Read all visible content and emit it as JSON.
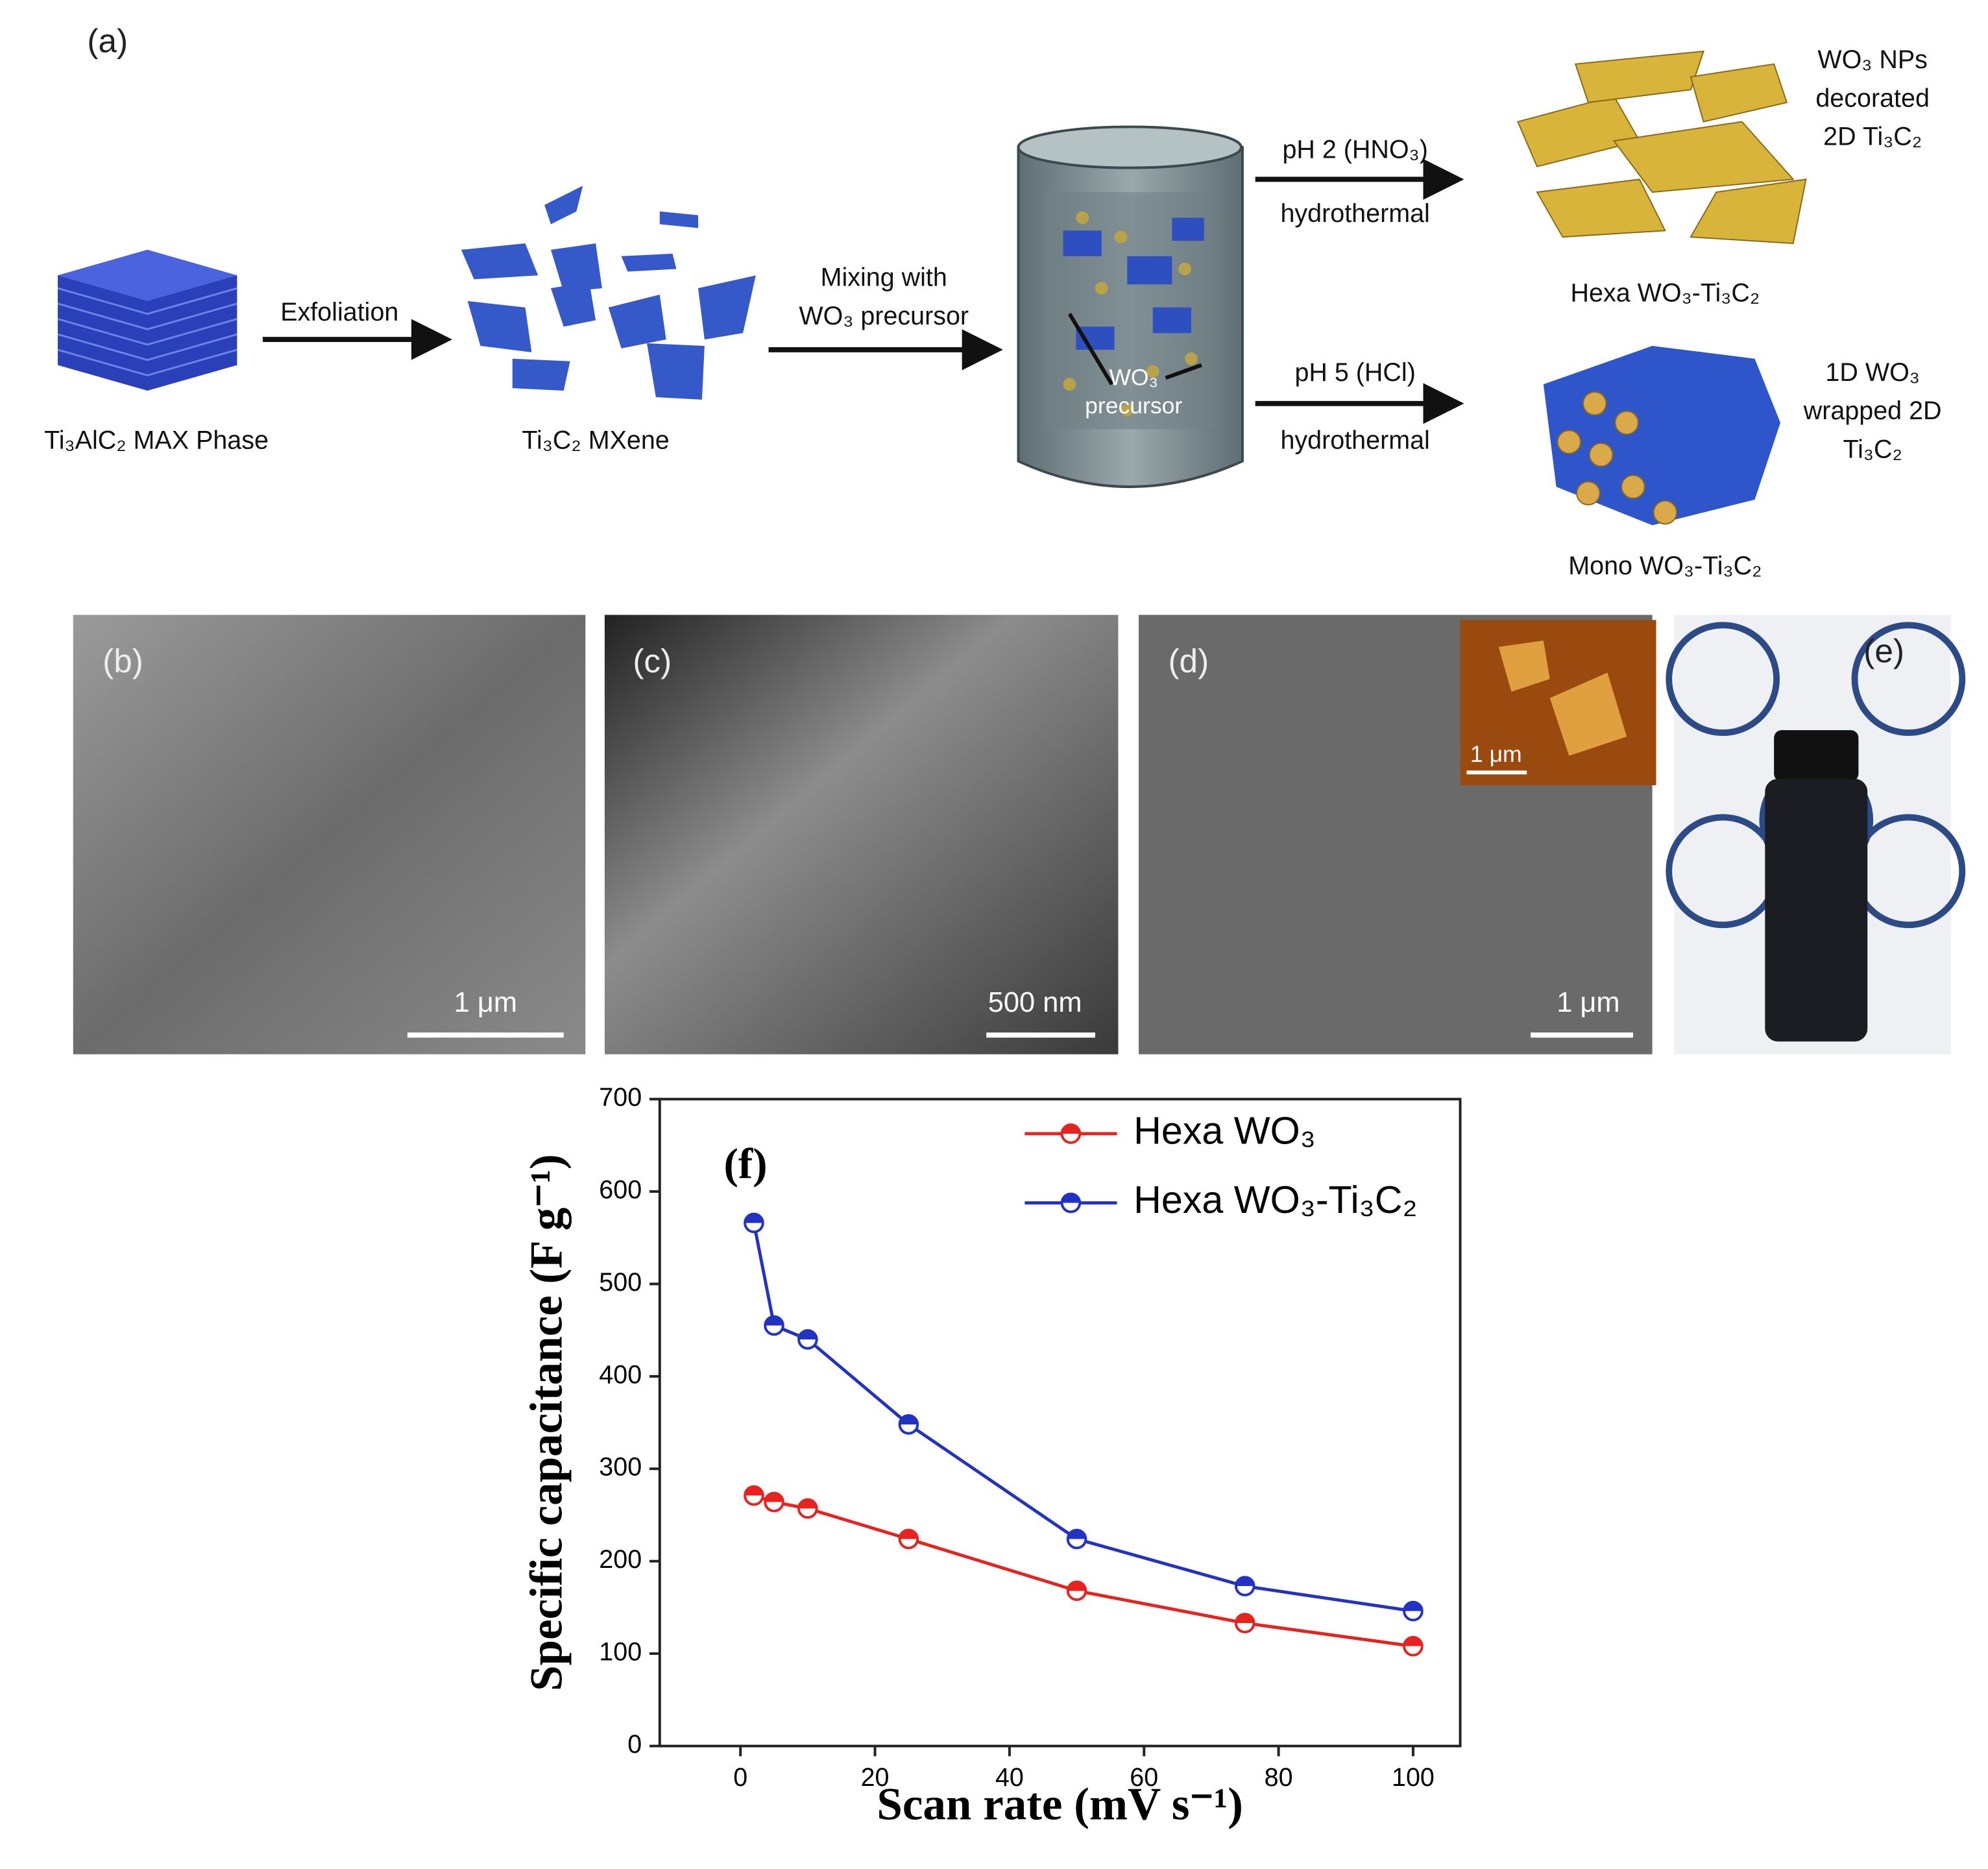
{
  "panel_a": {
    "label": "(a)",
    "max_phase": "Ti₃AlC₂ MAX Phase",
    "mxene": "Ti₃C₂ MXene",
    "exfoliation": "Exfoliation",
    "mixing": [
      "Mixing with",
      "WO₃ precursor"
    ],
    "precursor": [
      "WO₃",
      "precursor"
    ],
    "route_hexa": {
      "condition": "pH 2 (HNO₃)",
      "method": "hydrothermal",
      "description": [
        "WO₃ NPs",
        "decorated",
        "2D Ti₃C₂"
      ],
      "product": "Hexa WO₃-Ti₃C₂"
    },
    "route_mono": {
      "condition": "pH 5 (HCl)",
      "method": "hydrothermal",
      "description": [
        "1D WO₃",
        "wrapped 2D",
        "Ti₃C₂"
      ],
      "product": "Mono WO₃-Ti₃C₂"
    }
  },
  "micrographs": [
    {
      "label": "(b)",
      "scale_bar": "1 μm"
    },
    {
      "label": "(c)",
      "scale_bar": "500 nm"
    },
    {
      "label": "(d)",
      "scale_bar": "1 μm",
      "inset_scale_bar": "1 μm"
    },
    {
      "label": "(e)"
    }
  ],
  "chart_data": {
    "type": "line",
    "panel_label": "(f)",
    "x_label": "Scan rate (mV s⁻¹)",
    "y_label": "Specific capacitance (F g⁻¹)",
    "x": [
      2,
      5,
      10,
      25,
      50,
      75,
      100
    ],
    "series": [
      {
        "name": "Hexa WO₃",
        "color": "#e8231f",
        "values": [
          271,
          264,
          257,
          224,
          168,
          133,
          108
        ]
      },
      {
        "name": "Hexa WO₃-Ti₃C₂",
        "color": "#2233c4",
        "values": [
          566,
          455,
          440,
          348,
          224,
          173,
          146
        ]
      }
    ],
    "xlim": [
      -12,
      107
    ],
    "xticks": [
      0,
      20,
      40,
      60,
      80,
      100
    ],
    "ylim": [
      0,
      700
    ],
    "yticks": [
      0,
      100,
      200,
      300,
      400,
      500,
      600,
      700
    ],
    "legend": "top-right"
  }
}
